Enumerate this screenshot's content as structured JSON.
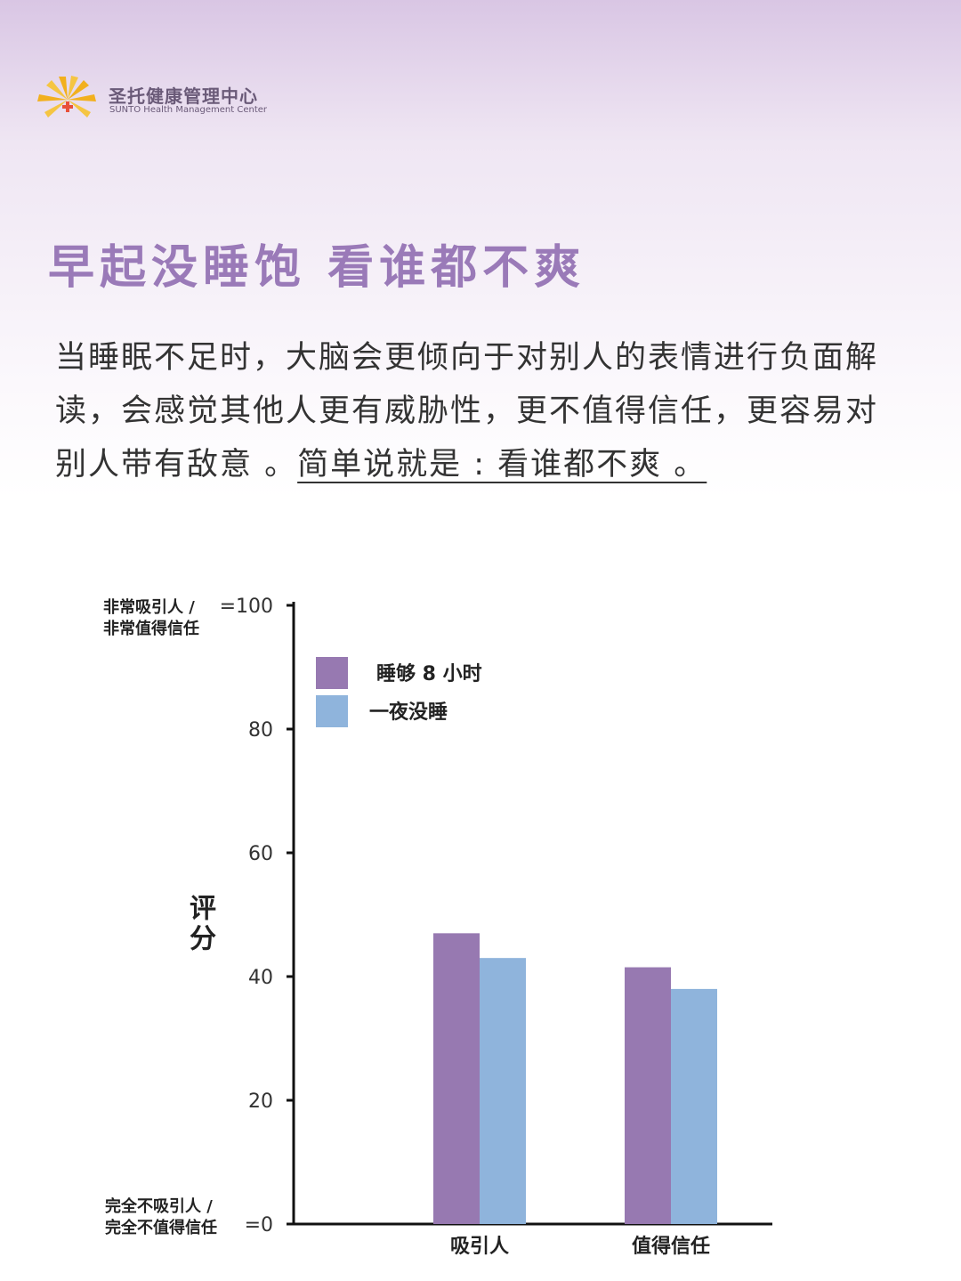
{
  "brand": {
    "name_cn": "圣托健康管理中心",
    "name_en": "SUNTO Health Management Center"
  },
  "headline": "早起没睡饱  看谁都不爽",
  "body": {
    "text": "当睡眠不足时，大脑会更倾向于对别人的表情进行负面解读，会感觉其他人更有威胁性，更不值得信任，更容易对别人带有敌意 。",
    "emphasis": "简单说就是 : 看谁都不爽 。"
  },
  "colors": {
    "accent": "#9a7ab8",
    "series_enough_sleep": "#9779b1",
    "series_no_sleep": "#8fb4dc"
  },
  "chart_data": {
    "type": "bar",
    "categories": [
      "吸引人",
      "值得信任"
    ],
    "series": [
      {
        "name": "睡够 8 小时",
        "values": [
          47,
          41.5
        ]
      },
      {
        "name": "一夜没睡",
        "values": [
          43,
          38
        ]
      }
    ],
    "ylabel": "评分",
    "ylim": [
      0,
      100
    ],
    "yticks": [
      {
        "value": 0,
        "label": "=0"
      },
      {
        "value": 20,
        "label": "20"
      },
      {
        "value": 40,
        "label": "40"
      },
      {
        "value": 60,
        "label": "60"
      },
      {
        "value": 80,
        "label": "80"
      },
      {
        "value": 100,
        "label": "=100"
      }
    ],
    "y_top_annotation": [
      "非常吸引人 /",
      "非常值得信任"
    ],
    "y_bottom_annotation": [
      "完全不吸引人 /",
      "完全不值得信任"
    ],
    "legend_position": "top-left",
    "grid": false
  }
}
